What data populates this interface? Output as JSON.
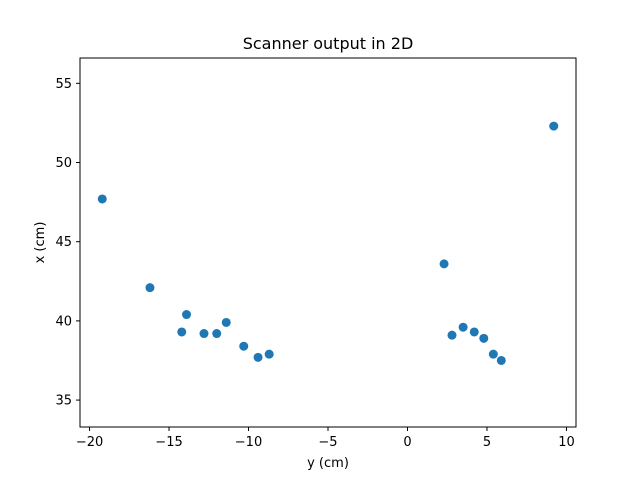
{
  "chart_data": {
    "type": "scatter",
    "title": "Scanner output in 2D",
    "xlabel": "y (cm)",
    "ylabel": "x (cm)",
    "xlim": [
      -20.6,
      10.6
    ],
    "ylim": [
      33.3,
      56.6
    ],
    "xticks": [
      -20,
      -15,
      -10,
      -5,
      0,
      5,
      10
    ],
    "xtick_labels": [
      "−20",
      "−15",
      "−10",
      "−5",
      "0",
      "5",
      "10"
    ],
    "yticks": [
      35,
      40,
      45,
      50,
      55
    ],
    "ytick_labels": [
      "35",
      "40",
      "45",
      "50",
      "55"
    ],
    "grid": false,
    "marker_color": "#1f77b4",
    "series": [
      {
        "points": [
          {
            "x": -19.2,
            "y": 47.7
          },
          {
            "x": -16.2,
            "y": 42.1
          },
          {
            "x": -14.2,
            "y": 39.3
          },
          {
            "x": -13.9,
            "y": 40.4
          },
          {
            "x": -12.8,
            "y": 39.2
          },
          {
            "x": -12.0,
            "y": 39.2
          },
          {
            "x": -11.4,
            "y": 39.9
          },
          {
            "x": -10.3,
            "y": 38.4
          },
          {
            "x": -9.4,
            "y": 37.7
          },
          {
            "x": -8.7,
            "y": 37.9
          },
          {
            "x": 2.3,
            "y": 43.6
          },
          {
            "x": 2.8,
            "y": 39.1
          },
          {
            "x": 3.5,
            "y": 39.6
          },
          {
            "x": 4.2,
            "y": 39.3
          },
          {
            "x": 4.8,
            "y": 38.9
          },
          {
            "x": 5.4,
            "y": 37.9
          },
          {
            "x": 5.9,
            "y": 37.5
          },
          {
            "x": 9.2,
            "y": 52.3
          }
        ]
      }
    ]
  }
}
